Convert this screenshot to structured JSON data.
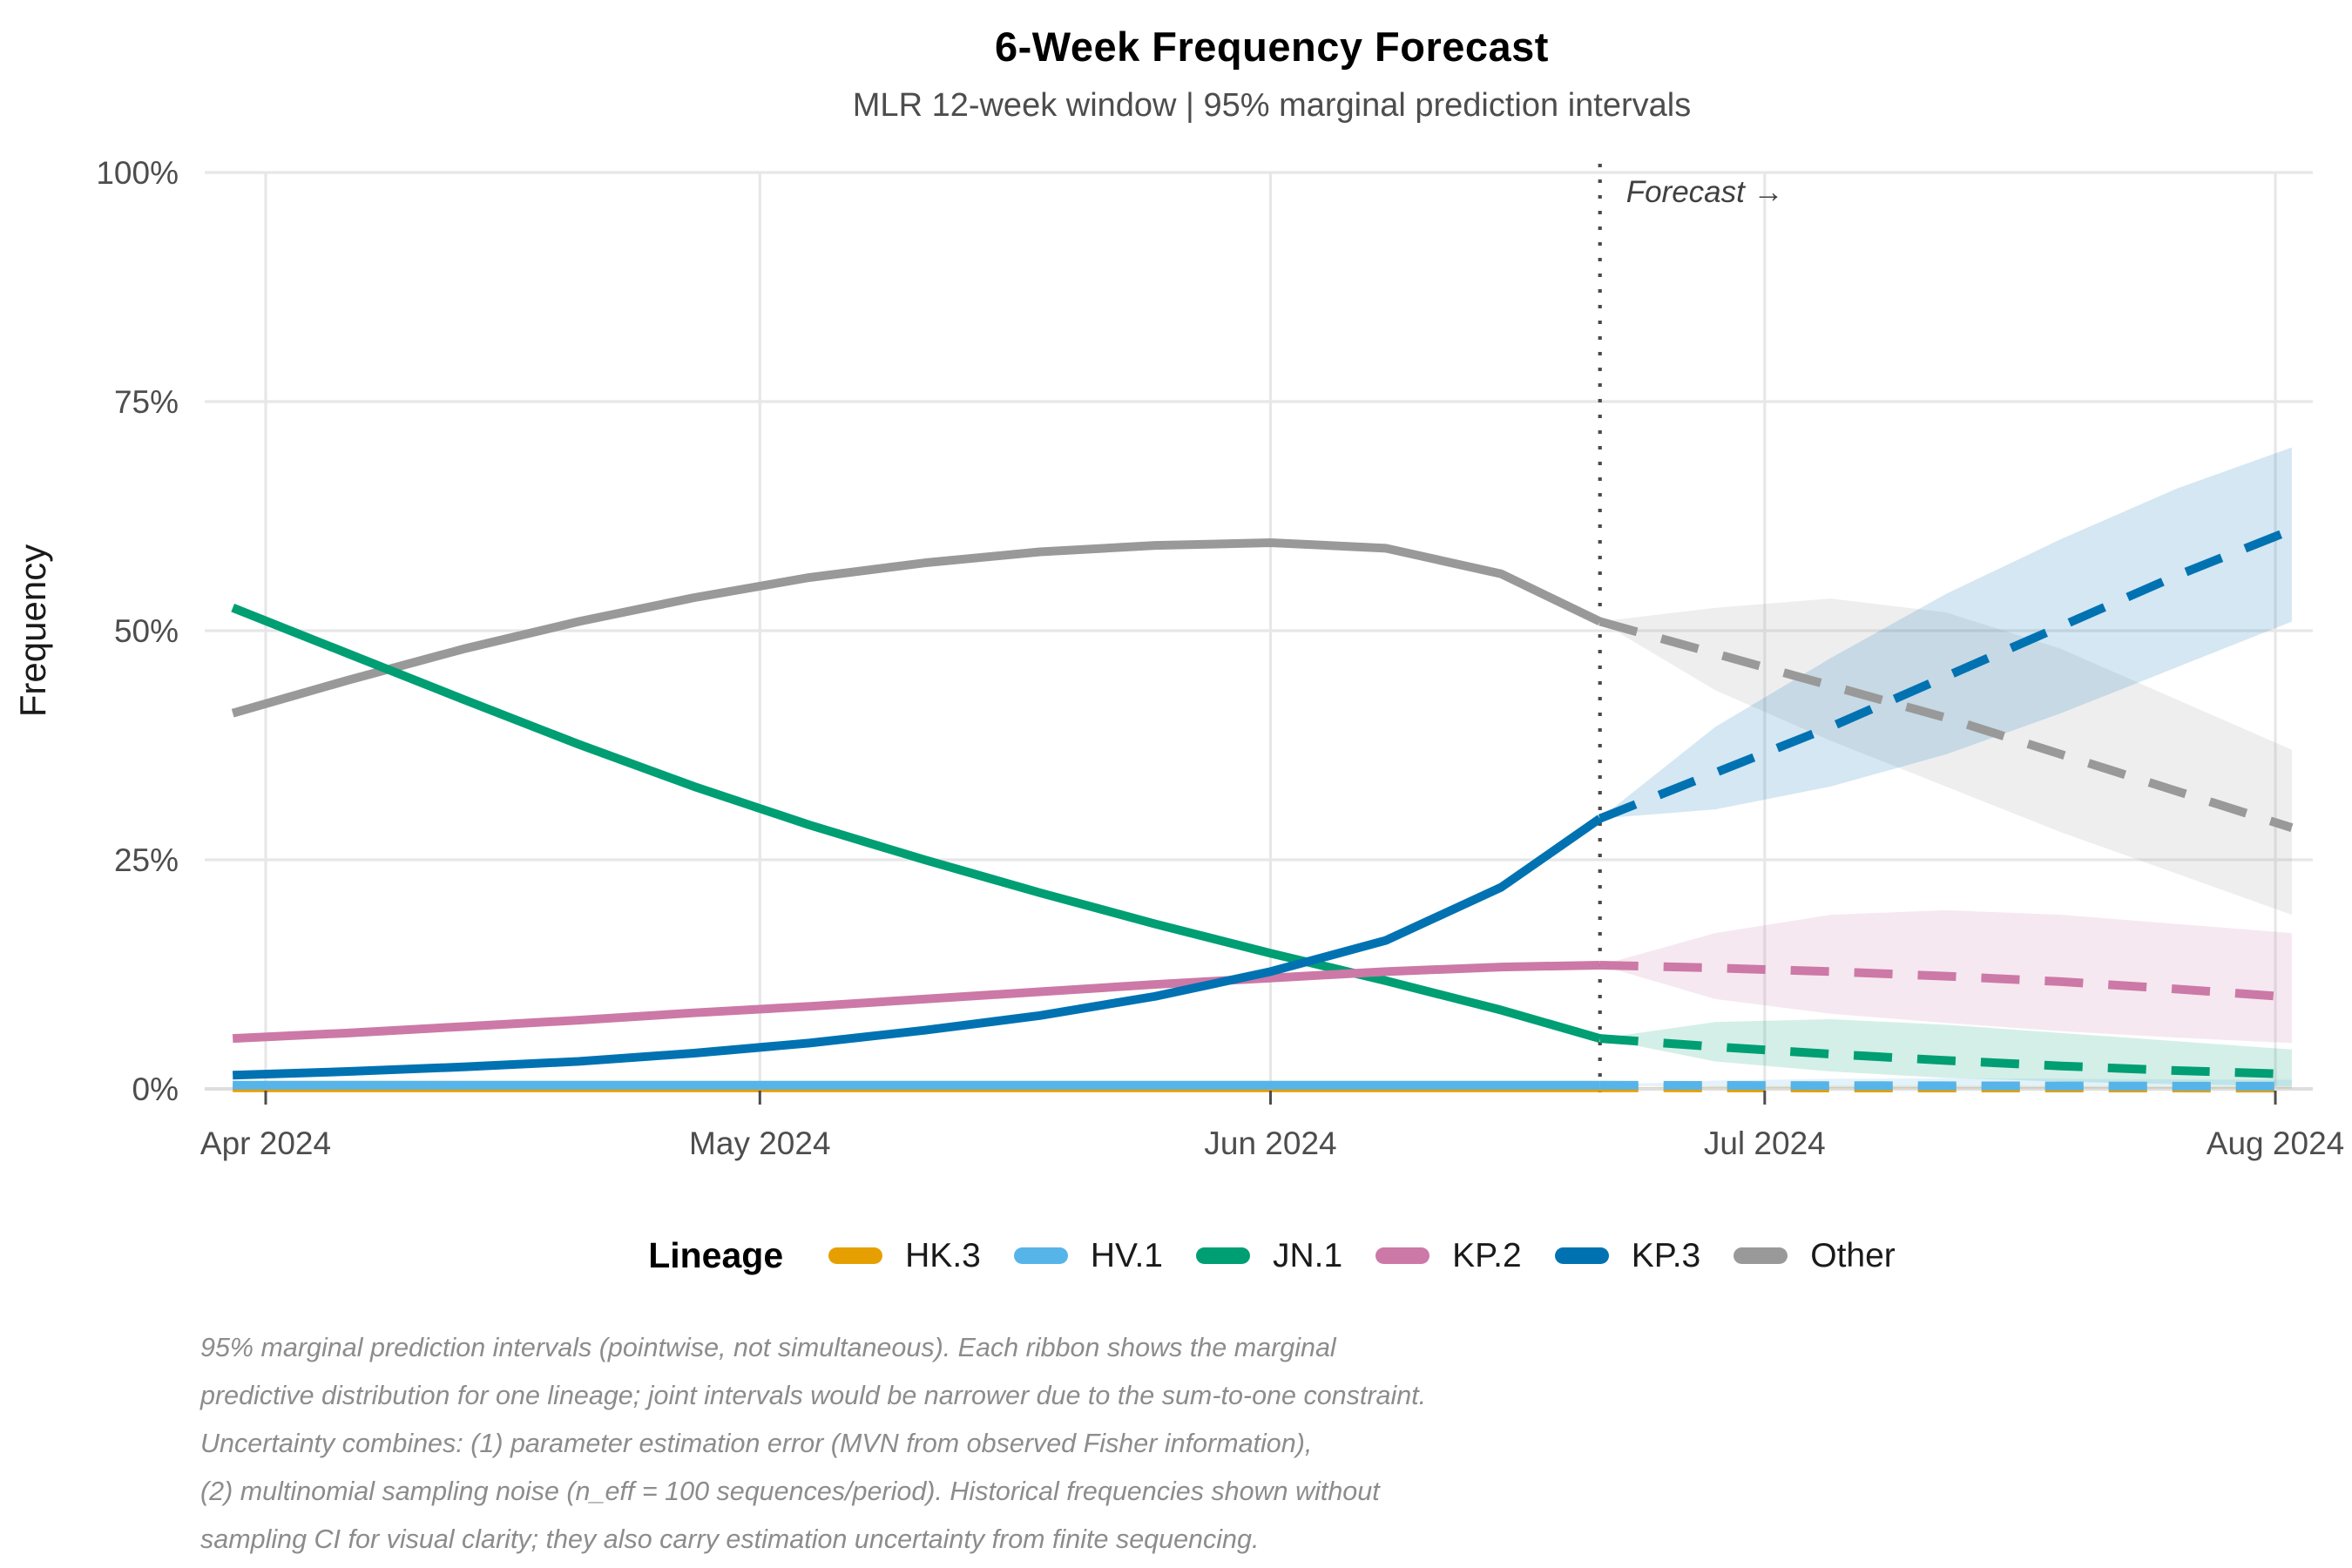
{
  "header": {
    "title": "6-Week Frequency Forecast",
    "subtitle": "MLR 12-week window | 95% marginal prediction intervals"
  },
  "annotation": {
    "forecast_label": "Forecast →",
    "forecast_start_day": 81
  },
  "y_axis": {
    "label": "Frequency",
    "ticks": [
      {
        "label": "0%",
        "value": 0
      },
      {
        "label": "25%",
        "value": 25
      },
      {
        "label": "50%",
        "value": 50
      },
      {
        "label": "75%",
        "value": 75
      },
      {
        "label": "100%",
        "value": 100
      }
    ]
  },
  "x_axis": {
    "ticks": [
      {
        "label": "Apr 2024",
        "day": 0
      },
      {
        "label": "May 2024",
        "day": 30
      },
      {
        "label": "Jun 2024",
        "day": 61
      },
      {
        "label": "Jul 2024",
        "day": 91
      },
      {
        "label": "Aug 2024",
        "day": 122
      }
    ]
  },
  "legend": {
    "title": "Lineage",
    "items": [
      {
        "label": "HK.3",
        "color": "#E69F00"
      },
      {
        "label": "HV.1",
        "color": "#56B4E9"
      },
      {
        "label": "JN.1",
        "color": "#009E73"
      },
      {
        "label": "KP.2",
        "color": "#CC79A7"
      },
      {
        "label": "KP.3",
        "color": "#0072B2"
      },
      {
        "label": "Other",
        "color": "#999999"
      }
    ]
  },
  "caption": {
    "lines": [
      "95% marginal prediction intervals (pointwise, not simultaneous). Each ribbon shows the marginal",
      "predictive distribution for one lineage; joint intervals would be narrower due to the sum-to-one constraint.",
      "Uncertainty combines: (1) parameter estimation error (MVN from observed Fisher information),",
      "(2) multinomial sampling noise (n_eff = 100 sequences/period). Historical frequencies shown without",
      "sampling CI for visual clarity; they also carry estimation uncertainty from finite sequencing."
    ]
  },
  "chart_data": {
    "type": "line",
    "title": "6-Week Frequency Forecast",
    "subtitle": "MLR 12-week window | 95% marginal prediction intervals",
    "xlabel": "",
    "ylabel": "Frequency",
    "ylim": [
      0,
      100
    ],
    "grid": true,
    "legend_position": "bottom",
    "x_unit": "days from 2024-04-01; month ticks Apr–Aug 2024; dotted line = forecast start (~Jun 21)",
    "historical": {
      "x_days": [
        -2,
        5,
        12,
        19,
        26,
        33,
        40,
        47,
        54,
        61,
        68,
        75,
        81
      ],
      "series": [
        {
          "name": "HK.3",
          "color": "#E69F00",
          "values": [
            0.12,
            0.12,
            0.12,
            0.12,
            0.12,
            0.12,
            0.12,
            0.12,
            0.12,
            0.12,
            0.12,
            0.12,
            0.12
          ]
        },
        {
          "name": "HV.1",
          "color": "#56B4E9",
          "values": [
            0.4,
            0.4,
            0.4,
            0.4,
            0.4,
            0.4,
            0.4,
            0.4,
            0.4,
            0.4,
            0.4,
            0.4,
            0.4
          ]
        },
        {
          "name": "JN.1",
          "color": "#009E73",
          "values": [
            52.5,
            47.5,
            42.5,
            37.6,
            33.0,
            28.8,
            25.0,
            21.4,
            18.0,
            14.8,
            11.8,
            8.6,
            5.5
          ]
        },
        {
          "name": "KP.2",
          "color": "#CC79A7",
          "values": [
            5.5,
            6.1,
            6.8,
            7.5,
            8.3,
            9.0,
            9.8,
            10.6,
            11.4,
            12.1,
            12.8,
            13.3,
            13.5
          ]
        },
        {
          "name": "KP.3",
          "color": "#0072B2",
          "values": [
            1.5,
            1.9,
            2.4,
            3.0,
            3.9,
            5.0,
            6.4,
            8.0,
            10.1,
            12.8,
            16.2,
            22.0,
            29.5
          ]
        },
        {
          "name": "Other",
          "color": "#999999",
          "values": [
            41.0,
            44.6,
            48.0,
            51.0,
            53.6,
            55.8,
            57.4,
            58.6,
            59.3,
            59.6,
            59.0,
            56.2,
            51.0
          ]
        }
      ]
    },
    "forecast": {
      "x_days": [
        81,
        88,
        95,
        102,
        109,
        116,
        123
      ],
      "series": [
        {
          "name": "HK.3",
          "color": "#E69F00",
          "median": [
            0.12,
            0.11,
            0.1,
            0.1,
            0.09,
            0.09,
            0.08
          ],
          "lower95": [
            0.12,
            0.04,
            0.03,
            0.02,
            0.02,
            0.02,
            0.01
          ],
          "upper95": [
            0.12,
            0.3,
            0.35,
            0.35,
            0.32,
            0.3,
            0.3
          ]
        },
        {
          "name": "HV.1",
          "color": "#56B4E9",
          "median": [
            0.4,
            0.38,
            0.36,
            0.34,
            0.32,
            0.3,
            0.3
          ],
          "lower95": [
            0.4,
            0.15,
            0.1,
            0.08,
            0.06,
            0.05,
            0.05
          ],
          "upper95": [
            0.4,
            0.9,
            1.1,
            1.15,
            1.1,
            1.05,
            1.0
          ]
        },
        {
          "name": "JN.1",
          "color": "#009E73",
          "median": [
            5.5,
            4.6,
            3.8,
            3.1,
            2.5,
            2.0,
            1.6
          ],
          "lower95": [
            5.5,
            3.0,
            1.9,
            1.2,
            0.8,
            0.5,
            0.3
          ],
          "upper95": [
            5.5,
            7.3,
            7.6,
            7.0,
            6.1,
            5.2,
            4.3
          ]
        },
        {
          "name": "KP.2",
          "color": "#CC79A7",
          "median": [
            13.5,
            13.2,
            12.8,
            12.3,
            11.7,
            10.9,
            10.0
          ],
          "lower95": [
            13.5,
            9.8,
            8.2,
            7.2,
            6.3,
            5.6,
            5.0
          ],
          "upper95": [
            13.5,
            17.0,
            19.0,
            19.5,
            19.0,
            18.0,
            17.0
          ]
        },
        {
          "name": "KP.3",
          "color": "#0072B2",
          "median": [
            29.5,
            34.5,
            39.5,
            45.0,
            50.5,
            56.0,
            61.0
          ],
          "lower95": [
            29.5,
            30.5,
            33.0,
            36.5,
            41.0,
            46.0,
            51.0
          ],
          "upper95": [
            29.5,
            39.5,
            47.0,
            54.0,
            60.0,
            65.5,
            70.0
          ]
        },
        {
          "name": "Other",
          "color": "#999999",
          "median": [
            51.0,
            47.5,
            44.0,
            40.5,
            36.5,
            32.5,
            28.5
          ],
          "lower95": [
            51.0,
            43.5,
            38.0,
            33.0,
            28.0,
            23.5,
            19.0
          ],
          "upper95": [
            51.0,
            52.5,
            53.5,
            52.0,
            48.0,
            42.5,
            37.0
          ]
        }
      ]
    }
  },
  "style": {
    "grid_color": "#e7e7e7",
    "axis_text_color": "#4d4d4d",
    "annotation_color": "#404040",
    "ribbon_opacity": 0.17
  }
}
